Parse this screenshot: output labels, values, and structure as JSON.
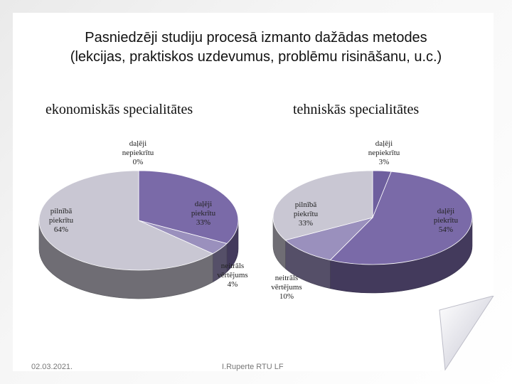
{
  "slide": {
    "title_line1": "Pasniedzēji studiju procesā izmanto dažādas metodes",
    "title_line2": "(lekcijas, praktiskos uzdevumus, problēmu risināšanu, u.c.)",
    "footer_date": "02.03.2021.",
    "footer_author": "I.Ruperte RTU LF"
  },
  "chart_data": [
    {
      "type": "pie",
      "title": "ekonomiskās specialitātes",
      "categories": [
        "daļēji nepiekrītu",
        "daļēji piekrītu",
        "neitrāls vērtējums",
        "pilnībā piekrītu"
      ],
      "values": [
        0,
        33,
        4,
        64
      ],
      "value_labels": [
        "0%",
        "33%",
        "4%",
        "64%"
      ],
      "label_lines": [
        [
          "daļēji",
          "nepiekrītu",
          "0%"
        ],
        [
          "daļēji",
          "piekrītu",
          "33%"
        ],
        [
          "neitrāls",
          "vērtējums",
          "4%"
        ],
        [
          "pilnībā",
          "piekrītu",
          "64%"
        ]
      ],
      "colors": [
        "#7a6aa8",
        "#7a6aa8",
        "#9a90bd",
        "#c9c7d3"
      ],
      "style": "3d"
    },
    {
      "type": "pie",
      "title": "tehniskās specialitātes",
      "categories": [
        "daļēji nepiekrītu",
        "daļēji piekrītu",
        "neitrāls vērtējums",
        "pilnībā piekrītu"
      ],
      "values": [
        3,
        54,
        10,
        33
      ],
      "value_labels": [
        "3%",
        "54%",
        "10%",
        "33%"
      ],
      "label_lines": [
        [
          "daļēji",
          "nepiekrītu",
          "3%"
        ],
        [
          "daļēji",
          "piekrītu",
          "54%"
        ],
        [
          "neitrāls",
          "vērtējums",
          "10%"
        ],
        [
          "pilnībā",
          "piekrītu",
          "33%"
        ]
      ],
      "colors": [
        "#6e5f9e",
        "#7a6aa8",
        "#9a90bd",
        "#c9c7d3"
      ],
      "style": "3d"
    }
  ]
}
